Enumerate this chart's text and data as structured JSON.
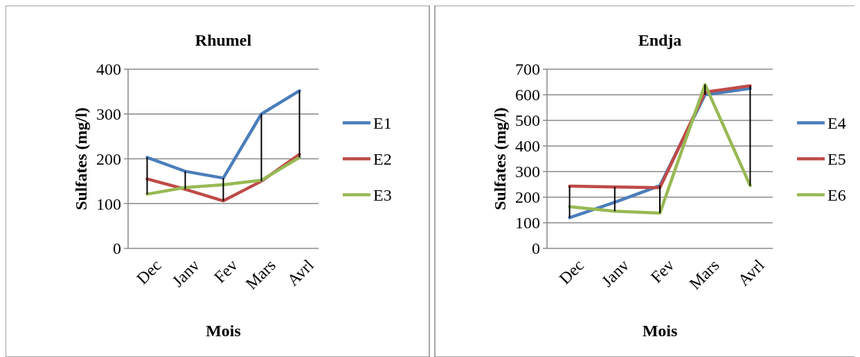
{
  "chart_data": [
    {
      "type": "line",
      "title": "Rhumel",
      "xlabel": "Mois",
      "ylabel": "Sulfates (mg/l)",
      "categories": [
        "Dec",
        "Janv",
        "Fev",
        "Mars",
        "Avrl"
      ],
      "ylim": [
        0,
        400
      ],
      "yticks": [
        0,
        100,
        200,
        300,
        400
      ],
      "grid": "y",
      "legend": "right",
      "series": [
        {
          "name": "E1",
          "color": "#4a7ebb",
          "values": [
            203,
            172,
            157,
            300,
            352
          ]
        },
        {
          "name": "E2",
          "color": "#be4b48",
          "values": [
            155,
            132,
            106,
            150,
            210
          ]
        },
        {
          "name": "E3",
          "color": "#98b954",
          "values": [
            121,
            136,
            142,
            152,
            203
          ]
        }
      ]
    },
    {
      "type": "line",
      "title": "Endja",
      "xlabel": "Mois",
      "ylabel": "Sulfates (mg/l)",
      "categories": [
        "Dec",
        "Janv",
        "Fev",
        "Mars",
        "Avrl"
      ],
      "ylim": [
        0,
        700
      ],
      "yticks": [
        0,
        100,
        200,
        300,
        400,
        500,
        600,
        700
      ],
      "grid": "y",
      "legend": "right",
      "series": [
        {
          "name": "E4",
          "color": "#4a7ebb",
          "values": [
            120,
            180,
            245,
            600,
            625
          ]
        },
        {
          "name": "E5",
          "color": "#be4b48",
          "values": [
            243,
            240,
            237,
            610,
            635
          ]
        },
        {
          "name": "E6",
          "color": "#98b954",
          "values": [
            163,
            145,
            138,
            640,
            245
          ]
        }
      ]
    }
  ]
}
